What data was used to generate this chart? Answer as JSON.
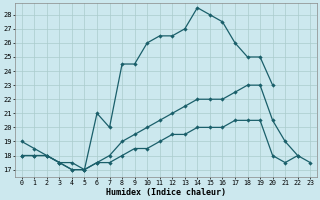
{
  "xlabel": "Humidex (Indice chaleur)",
  "xlim": [
    -0.5,
    23.5
  ],
  "ylim": [
    16.5,
    28.8
  ],
  "yticks": [
    17,
    18,
    19,
    20,
    21,
    22,
    23,
    24,
    25,
    26,
    27,
    28
  ],
  "xticks": [
    0,
    1,
    2,
    3,
    4,
    5,
    6,
    7,
    8,
    9,
    10,
    11,
    12,
    13,
    14,
    15,
    16,
    17,
    18,
    19,
    20,
    21,
    22,
    23
  ],
  "bg_color": "#cce8ee",
  "grid_color": "#aacccc",
  "line_color": "#1a5f6a",
  "line1_x": [
    0,
    1,
    2,
    3,
    4,
    5,
    6,
    7,
    8,
    9,
    10,
    11,
    12,
    13,
    14,
    15,
    16,
    17,
    18,
    19,
    20
  ],
  "line1_y": [
    19,
    18.5,
    18,
    17.5,
    17.5,
    17,
    21,
    20,
    24.5,
    24.5,
    26,
    26.5,
    26.5,
    27,
    28.5,
    28,
    27.5,
    26,
    25,
    25,
    23
  ],
  "line2_x": [
    0,
    1,
    2,
    3,
    4,
    5,
    6,
    7,
    8,
    9,
    10,
    11,
    12,
    13,
    14,
    15,
    16,
    17,
    18,
    19,
    20,
    21,
    22
  ],
  "line2_y": [
    18,
    18,
    18,
    17.5,
    17,
    17,
    17.5,
    18,
    19,
    19.5,
    20,
    20.5,
    21,
    21.5,
    22,
    22,
    22,
    22.5,
    23,
    23,
    20.5,
    19,
    18
  ],
  "line3_x": [
    0,
    1,
    2,
    3,
    4,
    5,
    6,
    7,
    8,
    9,
    10,
    11,
    12,
    13,
    14,
    15,
    16,
    17,
    18,
    19,
    20,
    21,
    22,
    23
  ],
  "line3_y": [
    18,
    18,
    18,
    17.5,
    17,
    17,
    17.5,
    17.5,
    18,
    18.5,
    18.5,
    19,
    19.5,
    19.5,
    20,
    20,
    20,
    20.5,
    20.5,
    20.5,
    18,
    17.5,
    18,
    17.5
  ]
}
